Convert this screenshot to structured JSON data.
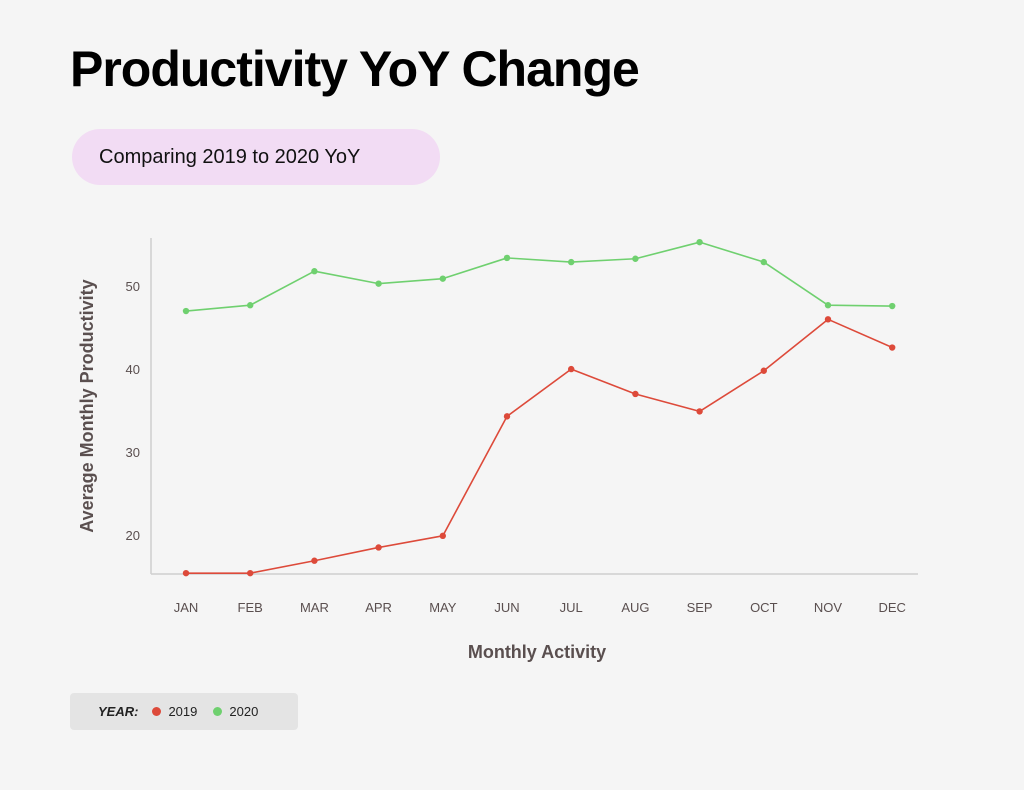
{
  "title": "Productivity YoY Change",
  "subtitle": "Comparing 2019 to 2020 YoY",
  "legend": {
    "label": "YEAR:",
    "items": [
      {
        "name": "2019",
        "color": "#dd4a3a"
      },
      {
        "name": "2020",
        "color": "#6fd06f"
      }
    ]
  },
  "chart_data": {
    "type": "line",
    "title": "Productivity YoY Change",
    "subtitle": "Comparing 2019 to 2020 YoY",
    "xlabel": "Monthly Activity",
    "ylabel": "Average Monthly Productivity",
    "categories": [
      "JAN",
      "FEB",
      "MAR",
      "APR",
      "MAY",
      "JUN",
      "JUL",
      "AUG",
      "SEP",
      "OCT",
      "NOV",
      "DEC"
    ],
    "yticks": [
      20,
      30,
      40,
      50
    ],
    "ylim": [
      15.3,
      55.2
    ],
    "grid": false,
    "legend_position": "bottom-left",
    "series": [
      {
        "name": "2019",
        "color": "#dd4a3a",
        "values": [
          15.4,
          15.4,
          16.9,
          18.5,
          19.9,
          34.3,
          40.0,
          37.0,
          34.9,
          39.8,
          46.0,
          42.6
        ]
      },
      {
        "name": "2020",
        "color": "#6fd06f",
        "values": [
          47.0,
          47.7,
          51.8,
          50.3,
          50.9,
          53.4,
          52.9,
          53.3,
          55.3,
          52.9,
          47.7,
          47.6
        ]
      }
    ]
  }
}
